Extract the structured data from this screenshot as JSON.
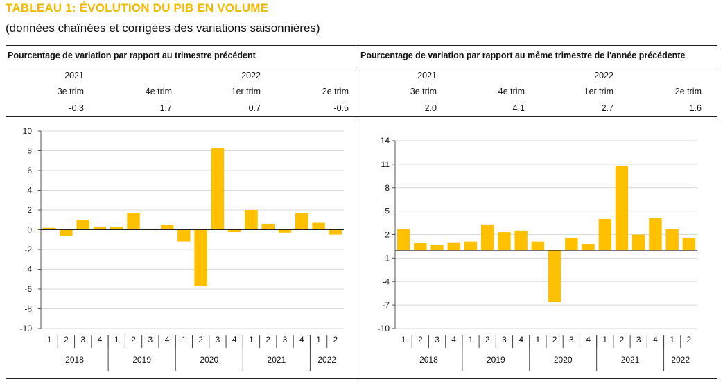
{
  "title": "TABLEAU 1: ÉVOLUTION DU PIB EN VOLUME",
  "subtitle": "(données chaînées et corrigées des variations saisonnières)",
  "colors": {
    "bar": "#FFC000",
    "title": "#F5B800"
  },
  "left_table": {
    "header": "Pourcentage de variation par rapport au trimestre précédent",
    "years": [
      "2021",
      "2022"
    ],
    "quarters": [
      "3e trim",
      "4e trim",
      "1er trim",
      "2e trim"
    ],
    "values": [
      "-0.3",
      "1.7",
      "0.7",
      "-0.5"
    ]
  },
  "right_table": {
    "header": "Pourcentage de variation par rapport au même trimestre de l'année précédente",
    "years": [
      "2021",
      "2022"
    ],
    "quarters": [
      "3e trim",
      "4e trim",
      "1er trim",
      "2e trim"
    ],
    "values": [
      "2.0",
      "4.1",
      "2.7",
      "1.6"
    ]
  },
  "chart_data": [
    {
      "type": "bar",
      "ylim": [
        -10,
        10
      ],
      "yticks": [
        10,
        8,
        6,
        4,
        2,
        0,
        -2,
        -4,
        -6,
        -8,
        -10
      ],
      "grid": true,
      "categories": [
        "1",
        "2",
        "3",
        "4",
        "1",
        "2",
        "3",
        "4",
        "1",
        "2",
        "3",
        "4",
        "1",
        "2",
        "3",
        "4",
        "1",
        "2"
      ],
      "years": [
        {
          "label": "2018",
          "count": 4
        },
        {
          "label": "2019",
          "count": 4
        },
        {
          "label": "2020",
          "count": 4
        },
        {
          "label": "2021",
          "count": 4
        },
        {
          "label": "2022",
          "count": 2
        }
      ],
      "values": [
        0.2,
        -0.6,
        1.0,
        0.3,
        0.3,
        1.7,
        0.1,
        0.5,
        -1.2,
        -5.7,
        8.3,
        -0.2,
        2.0,
        0.6,
        -0.3,
        1.7,
        0.7,
        -0.5
      ]
    },
    {
      "type": "bar",
      "ylim": [
        -10,
        14
      ],
      "yticks": [
        14,
        11,
        8,
        5,
        2,
        -1,
        -4,
        -7,
        -10
      ],
      "grid": true,
      "categories": [
        "1",
        "2",
        "3",
        "4",
        "1",
        "2",
        "3",
        "4",
        "1",
        "2",
        "3",
        "4",
        "1",
        "2",
        "3",
        "4",
        "1",
        "2"
      ],
      "years": [
        {
          "label": "2018",
          "count": 4
        },
        {
          "label": "2019",
          "count": 4
        },
        {
          "label": "2020",
          "count": 4
        },
        {
          "label": "2021",
          "count": 4
        },
        {
          "label": "2022",
          "count": 2
        }
      ],
      "values": [
        2.7,
        0.9,
        0.7,
        1.0,
        1.1,
        3.3,
        2.3,
        2.5,
        1.1,
        -6.6,
        1.6,
        0.8,
        4.0,
        10.8,
        2.0,
        4.1,
        2.7,
        1.6
      ]
    }
  ]
}
